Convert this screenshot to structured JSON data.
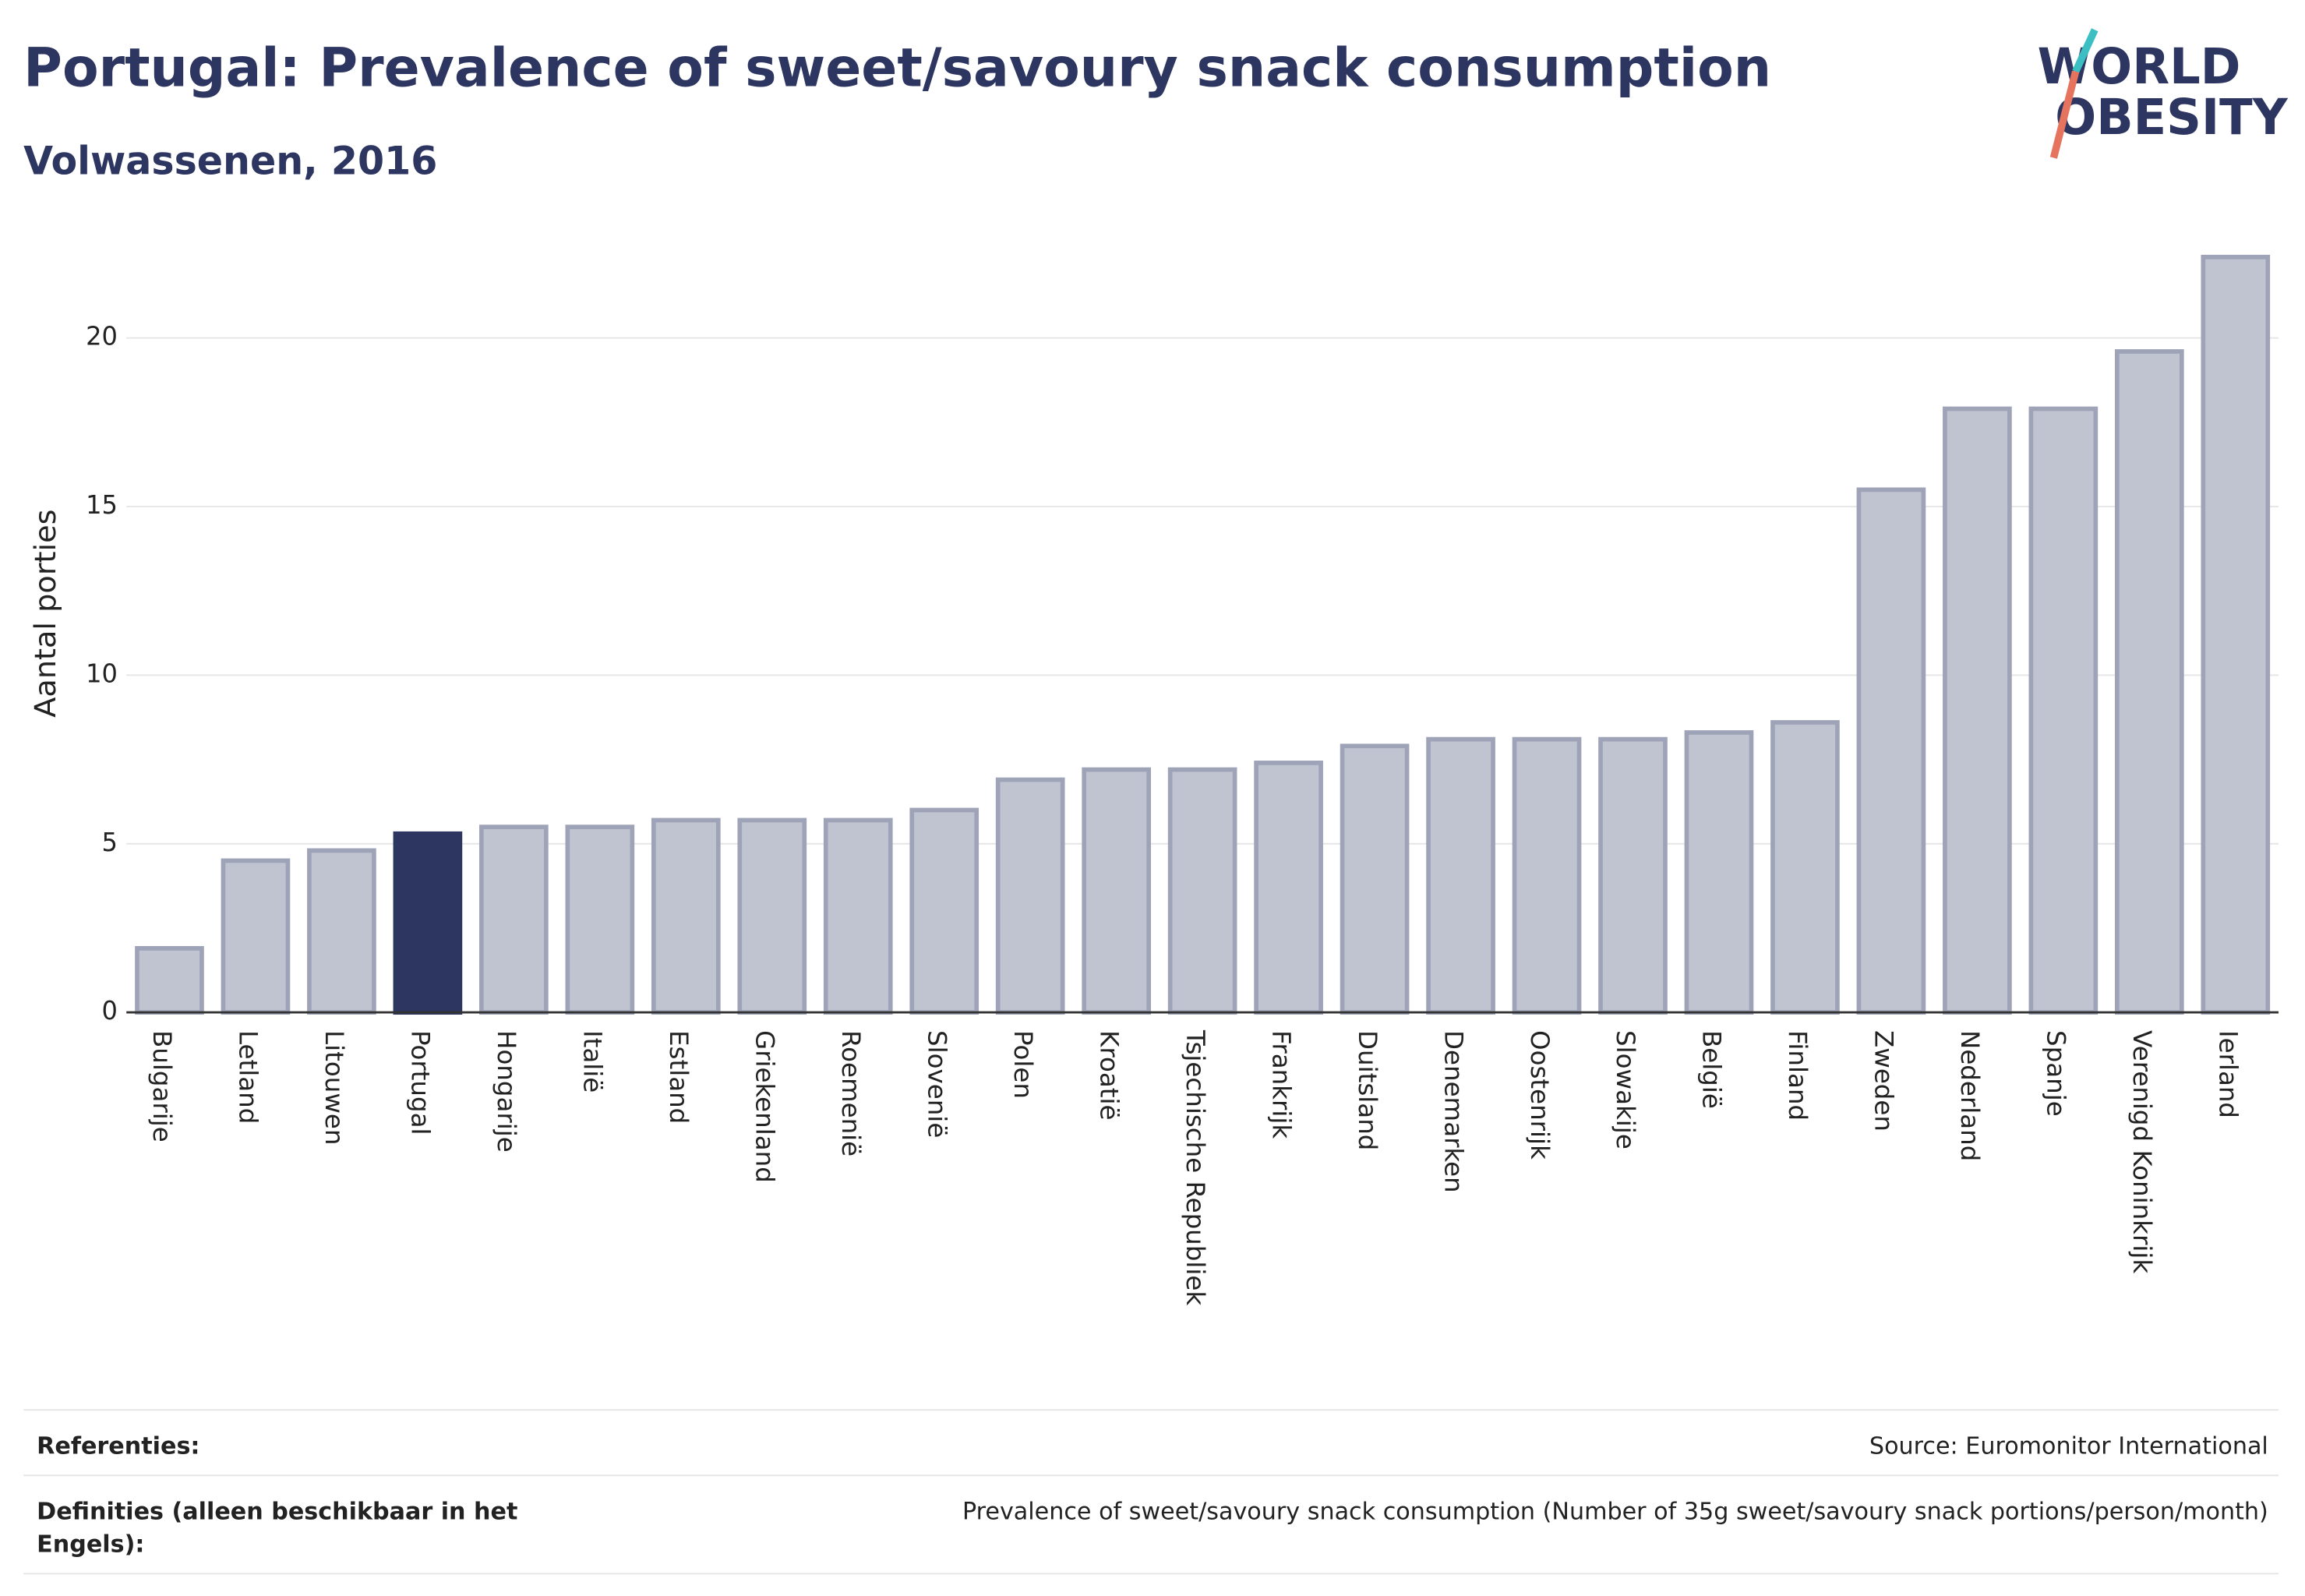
{
  "chart_data": {
    "type": "bar",
    "title": "Portugal: Prevalence of sweet/savoury snack consumption",
    "subtitle": "Volwassenen, 2016",
    "y_label": "Aantal porties",
    "categories": [
      "Bulgarije",
      "Letland",
      "Litouwen",
      "Portugal",
      "Hongarije",
      "Italië",
      "Estland",
      "Griekenland",
      "Roemenië",
      "Slovenië",
      "Polen",
      "Kroatië",
      "Tsjechische Republiek",
      "Frankrijk",
      "Duitsland",
      "Denemarken",
      "Oostenrijk",
      "Slowakije",
      "België",
      "Finland",
      "Zweden",
      "Nederland",
      "Spanje",
      "Verenigd Koninkrijk",
      "Ierland"
    ],
    "values": [
      1.9,
      4.5,
      4.8,
      5.3,
      5.5,
      5.5,
      5.7,
      5.7,
      5.7,
      6.0,
      6.9,
      7.2,
      7.2,
      7.4,
      7.9,
      8.1,
      8.1,
      8.1,
      8.3,
      8.6,
      15.5,
      17.9,
      17.9,
      19.6,
      22.4
    ],
    "colors": [
      "#c0c3d0",
      "#c0c3d0",
      "#c0c3d0",
      "#2d3561",
      "#c0c3d0",
      "#c0c3d0",
      "#c0c3d0",
      "#c0c3d0",
      "#c0c3d0",
      "#c0c3d0",
      "#c0c3d0",
      "#c0c3d0",
      "#c0c3d0",
      "#c0c3d0",
      "#c0c3d0",
      "#c0c3d0",
      "#c0c3d0",
      "#c0c3d0",
      "#c0c3d0",
      "#c0c3d0",
      "#c0c3d0",
      "#c0c3d0",
      "#c0c3d0",
      "#c0c3d0",
      "#c0c3d0"
    ],
    "ylim": [
      0,
      23
    ],
    "yticks": [
      0,
      5,
      10,
      15,
      20
    ],
    "grid": true
  },
  "logo": {
    "line1": "WORLD",
    "line2": "OBESITY"
  },
  "footer": {
    "references_label": "Referenties:",
    "references_text": "Source: Euromonitor International",
    "definitions_label_1": "Definities (alleen beschikbaar in het",
    "definitions_label_2": "Engels):",
    "definitions_text": "Prevalence of sweet/savoury snack consumption (Number of 35g sweet/savoury snack portions/person/month)"
  }
}
